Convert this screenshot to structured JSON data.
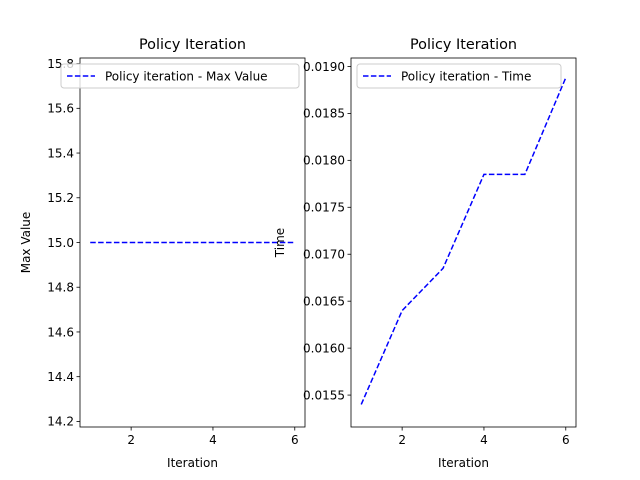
{
  "chart_data": [
    {
      "type": "line",
      "title": "Policy Iteration",
      "xlabel": "Iteration",
      "ylabel": "Max Value",
      "xlim": [
        0.75,
        6.25
      ],
      "ylim": [
        14.175,
        15.825
      ],
      "xticks": [
        2,
        4,
        6
      ],
      "yticks": [
        14.2,
        14.4,
        14.6,
        14.8,
        15.0,
        15.2,
        15.4,
        15.6,
        15.8
      ],
      "ytick_labels": [
        "14.2",
        "14.4",
        "14.6",
        "14.8",
        "15.0",
        "15.2",
        "15.4",
        "15.6",
        "15.8"
      ],
      "grid": false,
      "legend_position": "top-right",
      "series": [
        {
          "name": "Policy iteration - Max Value",
          "color": "#0000ff",
          "linestyle": "dashed",
          "x": [
            1,
            2,
            3,
            4,
            5,
            6
          ],
          "y": [
            15.0,
            15.0,
            15.0,
            15.0,
            15.0,
            15.0
          ]
        }
      ]
    },
    {
      "type": "line",
      "title": "Policy Iteration",
      "xlabel": "Iteration",
      "ylabel": "Time",
      "xlim": [
        0.75,
        6.25
      ],
      "ylim": [
        0.01516,
        0.01909
      ],
      "xticks": [
        2,
        4,
        6
      ],
      "yticks": [
        0.0155,
        0.016,
        0.0165,
        0.017,
        0.0175,
        0.018,
        0.0185,
        0.019
      ],
      "ytick_labels": [
        "0.0155",
        "0.0160",
        "0.0165",
        "0.0170",
        "0.0175",
        "0.0180",
        "0.0185",
        "0.0190"
      ],
      "grid": false,
      "legend_position": "top-left",
      "series": [
        {
          "name": "Policy iteration - Time",
          "color": "#0000ff",
          "linestyle": "dashed",
          "x": [
            1,
            2,
            3,
            4,
            5,
            6
          ],
          "y": [
            0.0154,
            0.0164,
            0.01685,
            0.01785,
            0.01785,
            0.01888
          ]
        }
      ]
    }
  ]
}
